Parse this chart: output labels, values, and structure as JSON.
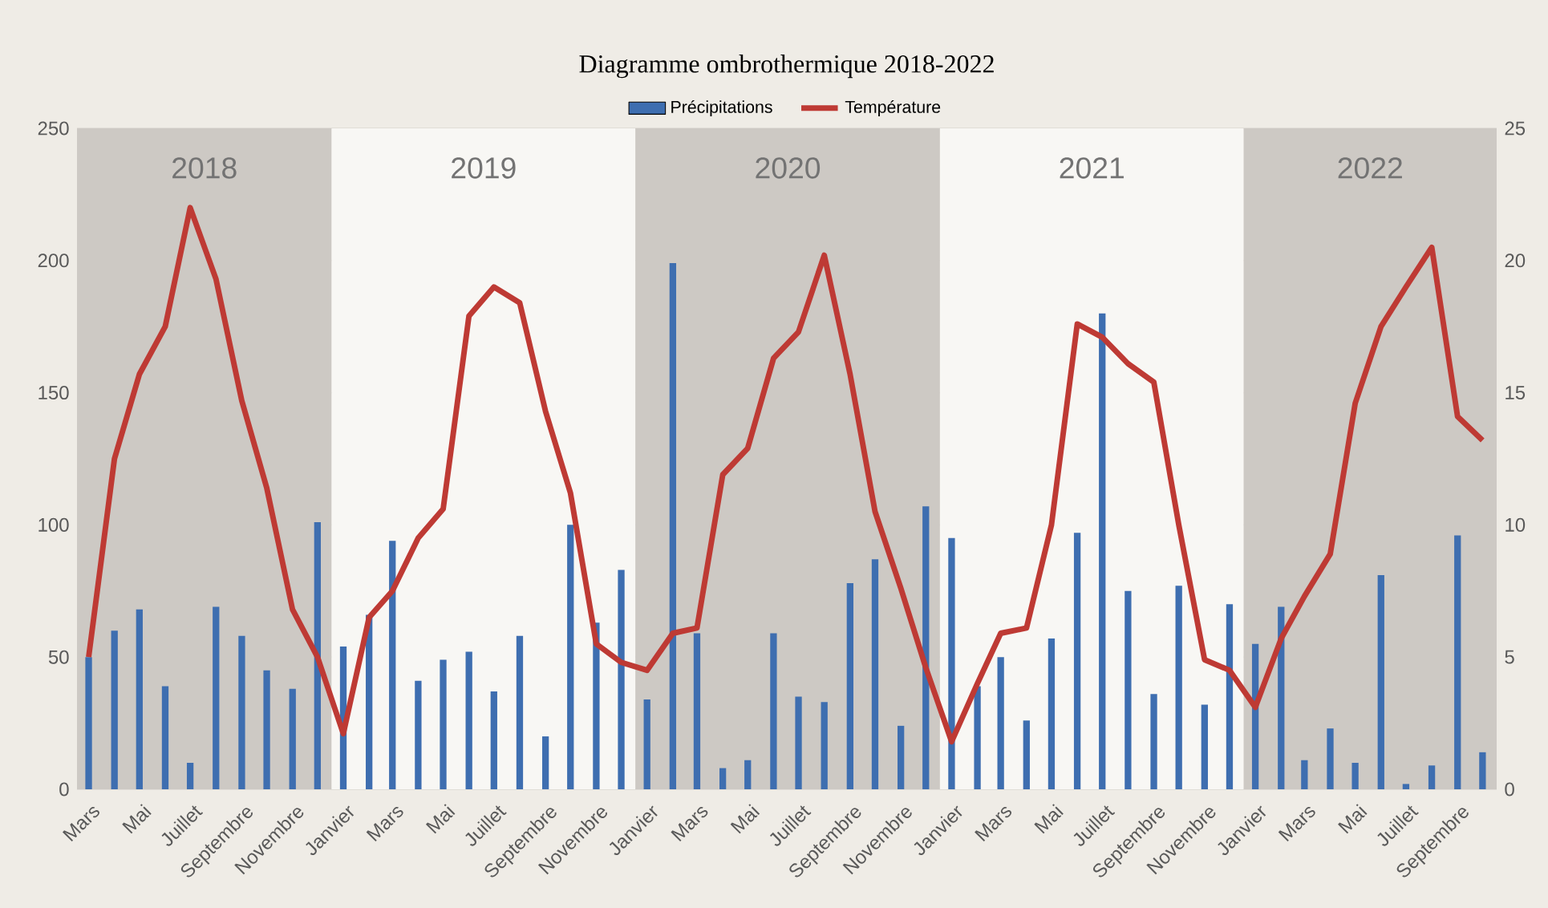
{
  "chart_data": {
    "type": "bar",
    "title": "Diagramme ombrothermique 2018-2022",
    "x": [
      "2018-03-15",
      "2018-04-15",
      "2018-05-15",
      "2018-06-15",
      "2018-07-15",
      "2018-08-15",
      "2018-09-15",
      "2018-10-15",
      "2018-11-15",
      "2018-12-15",
      "2019-01-15",
      "2019-02-15",
      "2019-03-15",
      "2019-04-15",
      "2019-05-15",
      "2019-06-15",
      "2019-07-15",
      "2019-08-15",
      "2019-09-15",
      "2019-10-15",
      "2019-11-15",
      "2019-12-15",
      "2020-01-15",
      "2020-02-15",
      "2020-03-15",
      "2020-04-15",
      "2020-05-15",
      "2020-06-15",
      "2020-07-15",
      "2020-08-15",
      "2020-09-15",
      "2020-10-15",
      "2020-11-15",
      "2020-12-15",
      "2021-01-15",
      "2021-02-15",
      "2021-03-15",
      "2021-04-15",
      "2021-05-15",
      "2021-06-15",
      "2021-07-15",
      "2021-08-15",
      "2021-09-15",
      "2021-10-15",
      "2021-11-15",
      "2021-12-15",
      "2022-01-15",
      "2022-02-15",
      "2022-03-15",
      "2022-04-15",
      "2022-05-15",
      "2022-06-15",
      "2022-07-15",
      "2022-08-15",
      "2022-09-15",
      "2022-10-15"
    ],
    "series": [
      {
        "name": "Précipitations",
        "color": "#3e6eb0",
        "values": [
          50,
          60,
          68,
          39,
          10,
          69,
          58,
          45,
          38,
          101,
          54,
          66,
          94,
          41,
          49,
          52,
          37,
          58,
          20,
          100,
          63,
          83,
          34,
          199,
          59,
          8,
          11,
          59,
          35,
          33,
          78,
          87,
          24,
          107,
          95,
          39,
          50,
          26,
          57,
          97,
          180,
          75,
          36,
          77,
          32,
          70,
          55,
          69,
          11,
          23,
          10,
          81,
          2,
          9,
          96,
          14
        ]
      },
      {
        "name": "Température",
        "type": "line",
        "axis": "y2",
        "color": "#be3a34",
        "values": [
          5.0,
          12.5,
          15.7,
          17.5,
          22.0,
          19.3,
          14.7,
          11.4,
          6.8,
          5.0,
          2.1,
          6.5,
          7.5,
          9.5,
          10.6,
          17.9,
          19.0,
          18.4,
          14.3,
          11.2,
          5.5,
          4.8,
          4.5,
          5.9,
          6.1,
          11.9,
          12.9,
          16.3,
          17.3,
          20.2,
          15.7,
          10.5,
          7.6,
          4.6,
          1.8,
          4.0,
          5.9,
          6.1,
          10.0,
          17.6,
          17.1,
          16.1,
          15.4,
          10.0,
          4.9,
          4.5,
          3.1,
          5.7,
          7.3,
          8.9,
          14.6,
          17.5,
          19.0,
          20.5,
          14.1,
          13.2
        ]
      }
    ],
    "xlim": [
      "2018-03-01",
      "2022-11-01"
    ],
    "xticks": [
      {
        "value": "2018-03-15",
        "label": "Mars"
      },
      {
        "value": "2018-05-15",
        "label": "Mai"
      },
      {
        "value": "2018-07-15",
        "label": "Juillet"
      },
      {
        "value": "2018-09-15",
        "label": "Septembre"
      },
      {
        "value": "2018-11-15",
        "label": "Novembre"
      },
      {
        "value": "2019-01-15",
        "label": "Janvier"
      },
      {
        "value": "2019-03-15",
        "label": "Mars"
      },
      {
        "value": "2019-05-15",
        "label": "Mai"
      },
      {
        "value": "2019-07-15",
        "label": "Juillet"
      },
      {
        "value": "2019-09-15",
        "label": "Septembre"
      },
      {
        "value": "2019-11-15",
        "label": "Novembre"
      },
      {
        "value": "2020-01-15",
        "label": "Janvier"
      },
      {
        "value": "2020-03-15",
        "label": "Mars"
      },
      {
        "value": "2020-05-15",
        "label": "Mai"
      },
      {
        "value": "2020-07-15",
        "label": "Juillet"
      },
      {
        "value": "2020-09-15",
        "label": "Septembre"
      },
      {
        "value": "2020-11-15",
        "label": "Novembre"
      },
      {
        "value": "2021-01-15",
        "label": "Janvier"
      },
      {
        "value": "2021-03-15",
        "label": "Mars"
      },
      {
        "value": "2021-05-15",
        "label": "Mai"
      },
      {
        "value": "2021-07-15",
        "label": "Juillet"
      },
      {
        "value": "2021-09-15",
        "label": "Septembre"
      },
      {
        "value": "2021-11-15",
        "label": "Novembre"
      },
      {
        "value": "2022-01-15",
        "label": "Janvier"
      },
      {
        "value": "2022-03-15",
        "label": "Mars"
      },
      {
        "value": "2022-05-15",
        "label": "Mai"
      },
      {
        "value": "2022-07-15",
        "label": "Juillet"
      },
      {
        "value": "2022-09-15",
        "label": "Septembre"
      }
    ],
    "ylim": [
      0,
      250
    ],
    "yticks": [
      0,
      50,
      100,
      150,
      200,
      250
    ],
    "y2lim": [
      0,
      25
    ],
    "y2ticks": [
      0,
      5,
      10,
      15,
      20,
      25
    ],
    "grid": "y",
    "legend": "top",
    "bands": [
      {
        "axis": "x",
        "from": "2018-03-01",
        "to": "2019-01-01",
        "label": "2018",
        "color": "#cdc9c4"
      },
      {
        "axis": "x",
        "from": "2019-01-01",
        "to": "2020-01-01",
        "label": "2019",
        "color": "#f8f7f4"
      },
      {
        "axis": "x",
        "from": "2020-01-01",
        "to": "2021-01-01",
        "label": "2020",
        "color": "#cdc9c4"
      },
      {
        "axis": "x",
        "from": "2021-01-01",
        "to": "2022-01-01",
        "label": "2021",
        "color": "#f8f7f4"
      },
      {
        "axis": "x",
        "from": "2022-01-01",
        "to": "2022-11-01",
        "label": "2022",
        "color": "#cdc9c4"
      }
    ]
  }
}
